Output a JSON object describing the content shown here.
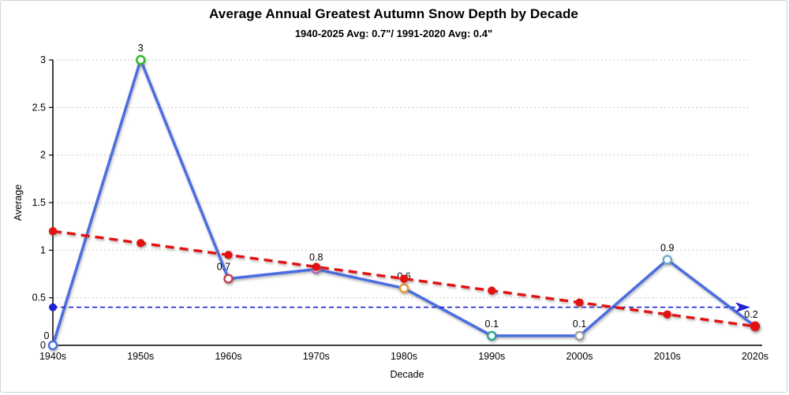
{
  "header": {
    "title": "Average Annual Greatest Autumn Snow Depth by Decade",
    "subtitle": "1940-2025 Avg: 0.7\"/ 1991-2020 Avg: 0.4\""
  },
  "chart_data": {
    "type": "line",
    "title": "Average Annual Greatest Autumn Snow Depth by Decade",
    "subtitle": "1940-2025 Avg: 0.7\"/ 1991-2020 Avg: 0.4\"",
    "xlabel": "Decade",
    "ylabel": "Average",
    "categories": [
      "1940s",
      "1950s",
      "1960s",
      "1970s",
      "1980s",
      "1990s",
      "2000s",
      "2010s",
      "2020s"
    ],
    "yticks": [
      "0",
      "0.5",
      "1",
      "1.5",
      "2",
      "2.5",
      "3"
    ],
    "ylim": [
      0,
      3
    ],
    "grid": "dotted-horizontal",
    "legend": "none",
    "series": [
      {
        "name": "Greatest autumn snow depth by decade",
        "type": "line",
        "color": "#4a6de2",
        "values": [
          0,
          3,
          0.7,
          0.8,
          0.6,
          0.1,
          0.1,
          0.9,
          0.2
        ],
        "point_labels": [
          "0",
          "3",
          "0.7",
          "0.8",
          "0.6",
          "0.1",
          "0.1",
          "0.9",
          "0.2"
        ],
        "marker_style": "hollow-circle",
        "marker_colors": [
          "#4a6de2",
          "#2eb82e",
          "#c23a52",
          "#b266c2",
          "#e89a35",
          "#27a395",
          "#9e9e9e",
          "#6fa9cc",
          "#e31212"
        ]
      },
      {
        "name": "Linear trend",
        "type": "dashed-line",
        "color": "#e31212",
        "marker_style": "filled-circle",
        "values": [
          1.2,
          1.075,
          0.95,
          0.825,
          0.7,
          0.575,
          0.45,
          0.325,
          0.2
        ]
      },
      {
        "name": "1991-2020 average reference line",
        "type": "dashed-horizontal-arrow",
        "color": "#2121d6",
        "value": 0.4
      }
    ],
    "colors": {
      "axis": "#000000",
      "gridline": "#c9c9c9",
      "label_text": "#000000"
    }
  }
}
